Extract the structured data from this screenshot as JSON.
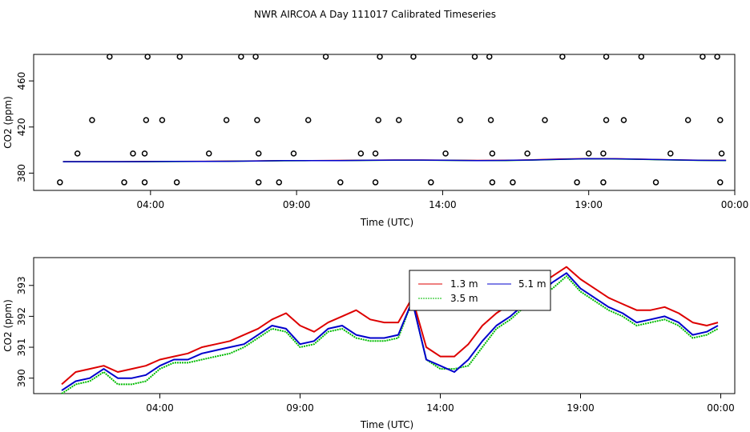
{
  "title": "NWR AIRCOA A  Day 111017  Calibrated Timeseries",
  "colors": {
    "red": "#dd0000",
    "green": "#00bb00",
    "blue": "#0000cc",
    "axis": "#000000"
  },
  "chart_data": [
    {
      "type": "scatter",
      "xlabel": "Time (UTC)",
      "ylabel": "CO2 (ppm)",
      "x_unit": "hours since 00:00",
      "xlim": [
        0,
        24
      ],
      "ylim": [
        365,
        483
      ],
      "xticks": [
        {
          "v": 4,
          "label": "04:00"
        },
        {
          "v": 9,
          "label": "09:00"
        },
        {
          "v": 14,
          "label": "14:00"
        },
        {
          "v": 19,
          "label": "19:00"
        },
        {
          "v": 24,
          "label": "00:00"
        }
      ],
      "yticks": [
        {
          "v": 380,
          "label": "380"
        },
        {
          "v": 420,
          "label": "420"
        },
        {
          "v": 460,
          "label": "460"
        }
      ],
      "points": [
        [
          0.9,
          372
        ],
        [
          1.5,
          397
        ],
        [
          2.0,
          426
        ],
        [
          2.6,
          481
        ],
        [
          3.1,
          372
        ],
        [
          3.4,
          397
        ],
        [
          3.8,
          397
        ],
        [
          3.85,
          426
        ],
        [
          3.8,
          372
        ],
        [
          3.9,
          481
        ],
        [
          4.4,
          426
        ],
        [
          4.9,
          372
        ],
        [
          5.0,
          481
        ],
        [
          6.0,
          397
        ],
        [
          6.6,
          426
        ],
        [
          7.1,
          481
        ],
        [
          7.6,
          481
        ],
        [
          7.65,
          426
        ],
        [
          7.7,
          397
        ],
        [
          7.7,
          372
        ],
        [
          8.4,
          372
        ],
        [
          8.9,
          397
        ],
        [
          9.4,
          426
        ],
        [
          10.0,
          481
        ],
        [
          10.5,
          372
        ],
        [
          11.2,
          397
        ],
        [
          11.7,
          397
        ],
        [
          11.8,
          426
        ],
        [
          11.85,
          481
        ],
        [
          11.7,
          372
        ],
        [
          12.5,
          426
        ],
        [
          13.0,
          481
        ],
        [
          13.6,
          372
        ],
        [
          14.1,
          397
        ],
        [
          14.6,
          426
        ],
        [
          15.1,
          481
        ],
        [
          15.6,
          481
        ],
        [
          15.65,
          426
        ],
        [
          15.7,
          397
        ],
        [
          15.7,
          372
        ],
        [
          16.4,
          372
        ],
        [
          16.9,
          397
        ],
        [
          17.5,
          426
        ],
        [
          18.1,
          481
        ],
        [
          18.6,
          372
        ],
        [
          19.0,
          397
        ],
        [
          19.5,
          397
        ],
        [
          19.6,
          426
        ],
        [
          19.6,
          481
        ],
        [
          19.5,
          372
        ],
        [
          20.2,
          426
        ],
        [
          20.8,
          481
        ],
        [
          21.3,
          372
        ],
        [
          21.8,
          397
        ],
        [
          22.4,
          426
        ],
        [
          22.9,
          481
        ],
        [
          23.4,
          481
        ],
        [
          23.5,
          426
        ],
        [
          23.55,
          397
        ],
        [
          23.5,
          372
        ]
      ],
      "series": [
        {
          "color": "red",
          "values": [
            390.0,
            390.0,
            390.0,
            390.1,
            390.2,
            390.3,
            390.4,
            390.6,
            390.9,
            390.9,
            391.0,
            391.2,
            391.4,
            391.4,
            391.2,
            391.0,
            391.1,
            391.5,
            392.2,
            392.6,
            392.5,
            392.1,
            391.6,
            391.2,
            391.1
          ]
        },
        {
          "color": "green",
          "values": [
            389.9,
            389.9,
            389.9,
            389.9,
            390.0,
            390.1,
            390.3,
            390.5,
            390.7,
            390.8,
            390.8,
            391.0,
            391.2,
            391.2,
            391.0,
            390.8,
            390.9,
            391.3,
            391.9,
            392.4,
            392.3,
            391.9,
            391.4,
            391.0,
            390.9
          ]
        },
        {
          "color": "blue",
          "values": [
            389.9,
            389.9,
            389.9,
            390.0,
            390.1,
            390.2,
            390.3,
            390.5,
            390.8,
            390.8,
            390.9,
            391.1,
            391.3,
            391.3,
            391.1,
            390.9,
            391.0,
            391.4,
            392.0,
            392.5,
            392.4,
            392.0,
            391.5,
            391.1,
            391.0
          ]
        }
      ]
    },
    {
      "type": "line",
      "xlabel": "Time (UTC)",
      "ylabel": "CO2 (ppm)",
      "x_unit": "hours since 00:00",
      "xlim": [
        -0.5,
        24.5
      ],
      "ylim": [
        389.5,
        393.9
      ],
      "xticks": [
        {
          "v": 4,
          "label": "04:00"
        },
        {
          "v": 9,
          "label": "09:00"
        },
        {
          "v": 14,
          "label": "14:00"
        },
        {
          "v": 19,
          "label": "19:00"
        },
        {
          "v": 24,
          "label": "00:00"
        }
      ],
      "yticks": [
        {
          "v": 390,
          "label": "390"
        },
        {
          "v": 391,
          "label": "391"
        },
        {
          "v": 392,
          "label": "392"
        },
        {
          "v": 393,
          "label": "393"
        }
      ],
      "legend": {
        "placement": "top-center",
        "entries": [
          {
            "label": "1.3 m",
            "color": "red"
          },
          {
            "label": "5.1 m",
            "color": "blue"
          },
          {
            "label": "3.5 m",
            "color": "green"
          }
        ]
      },
      "x": [
        0.5,
        1.0,
        1.5,
        2.0,
        2.5,
        3.0,
        3.5,
        4.0,
        4.5,
        5.0,
        5.5,
        6.0,
        6.5,
        7.0,
        7.5,
        8.0,
        8.5,
        9.0,
        9.5,
        10.0,
        10.5,
        11.0,
        11.5,
        12.0,
        12.5,
        13.0,
        13.5,
        14.0,
        14.5,
        15.0,
        15.5,
        16.0,
        16.5,
        17.0,
        17.5,
        18.0,
        18.5,
        19.0,
        19.5,
        20.0,
        20.5,
        21.0,
        21.5,
        22.0,
        22.5,
        23.0,
        23.5,
        23.9
      ],
      "series": [
        {
          "name": "1.3 m",
          "color": "red",
          "values": [
            389.8,
            390.2,
            390.3,
            390.4,
            390.2,
            390.3,
            390.4,
            390.6,
            390.7,
            390.8,
            391.0,
            391.1,
            391.2,
            391.4,
            391.6,
            391.9,
            392.1,
            391.7,
            391.5,
            391.8,
            392.0,
            392.2,
            391.9,
            391.8,
            391.8,
            392.6,
            391.0,
            390.7,
            390.7,
            391.1,
            391.7,
            392.1,
            392.4,
            392.8,
            393.0,
            393.3,
            393.6,
            393.2,
            392.9,
            392.6,
            392.4,
            392.2,
            392.2,
            392.3,
            392.1,
            391.8,
            391.7,
            391.8
          ]
        },
        {
          "name": "3.5 m",
          "color": "green",
          "values": [
            389.5,
            389.8,
            389.9,
            390.2,
            389.8,
            389.8,
            389.9,
            390.3,
            390.5,
            390.5,
            390.6,
            390.7,
            390.8,
            391.0,
            391.3,
            391.6,
            391.5,
            391.0,
            391.1,
            391.5,
            391.6,
            391.3,
            391.2,
            391.2,
            391.3,
            392.5,
            390.6,
            390.3,
            390.3,
            390.4,
            391.0,
            391.6,
            391.9,
            392.3,
            392.6,
            392.9,
            393.3,
            392.8,
            392.5,
            392.2,
            392.0,
            391.7,
            391.8,
            391.9,
            391.7,
            391.3,
            391.4,
            391.6
          ]
        },
        {
          "name": "5.1 m",
          "color": "blue",
          "values": [
            389.6,
            389.9,
            390.0,
            390.3,
            390.0,
            390.0,
            390.1,
            390.4,
            390.6,
            390.6,
            390.8,
            390.9,
            391.0,
            391.1,
            391.4,
            391.7,
            391.6,
            391.1,
            391.2,
            391.6,
            391.7,
            391.4,
            391.3,
            391.3,
            391.4,
            392.5,
            390.6,
            390.4,
            390.2,
            390.6,
            391.2,
            391.7,
            392.0,
            392.4,
            392.7,
            393.1,
            393.4,
            392.9,
            392.6,
            392.3,
            392.1,
            391.8,
            391.9,
            392.0,
            391.8,
            391.4,
            391.5,
            391.7
          ]
        }
      ]
    }
  ]
}
